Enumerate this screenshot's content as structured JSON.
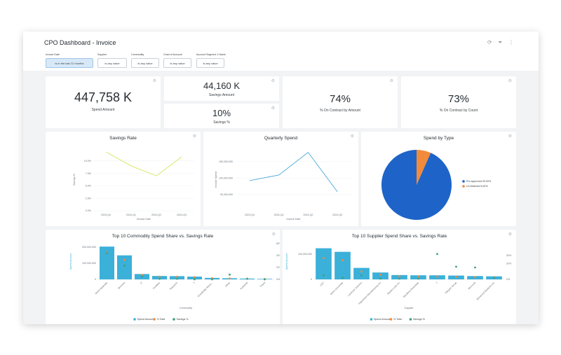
{
  "header": {
    "title": "CPO Dashboard - Invoice",
    "icons": [
      "refresh-icon",
      "filter-icon",
      "more-vertical-icon"
    ]
  },
  "filters": [
    {
      "label": "Invoice Date",
      "value": "is in the last 12 months"
    },
    {
      "label": "Supplier",
      "value": "is any value"
    },
    {
      "label": "Commodity",
      "value": "is any value"
    },
    {
      "label": "Chart of Account",
      "value": "is any value"
    },
    {
      "label": "Account Segment 1 Name",
      "value": "is any value"
    }
  ],
  "kpis": {
    "spend_amount": {
      "value": "447,758 K",
      "label": "Spend Amount"
    },
    "savings_amount": {
      "value": "44,160 K",
      "label": "Savings Amount"
    },
    "savings_pct": {
      "value": "10%",
      "label": "Savings %"
    },
    "on_contract_amount": {
      "value": "74%",
      "label": "% On Contract by Amount"
    },
    "on_contract_count": {
      "value": "73%",
      "label": "% On Contract by Count"
    }
  },
  "colors": {
    "teal": "#3bb0d9",
    "orange": "#f28a3b",
    "green": "#3f9f79",
    "blue_pie": "#1e64c8",
    "lime_line": "#d7e55f",
    "blue_line": "#4aa9dc"
  },
  "chart_data": [
    {
      "id": "savings_rate",
      "type": "line",
      "title": "Savings Rate",
      "xlabel": "Invoice Date",
      "ylabel": "Savings %",
      "x": [
        "2023-Q4",
        "2024-Q1",
        "2024-Q2",
        "2024-Q3"
      ],
      "series": [
        {
          "values": [
            11.8,
            9.0,
            7.0,
            10.8
          ]
        }
      ],
      "y_ticks": [
        "0.0%",
        "2.5%",
        "5.0%",
        "7.5%",
        "10.0%"
      ],
      "ylim": [
        0,
        12.5
      ]
    },
    {
      "id": "quarterly_spend",
      "type": "line",
      "title": "Quarterly Spend",
      "xlabel": "Invoice Date",
      "ylabel": "Invoice Spend",
      "x": [
        "2023-Q4",
        "2024-Q1",
        "2024-Q2",
        "2024-Q3"
      ],
      "series": [
        {
          "values": [
            92000000,
            109000000,
            178000000,
            58000000
          ]
        }
      ],
      "y_ticks": [
        "50,000,000",
        "100,000,000",
        "150,000,000"
      ],
      "ylim": [
        0,
        190000000
      ]
    },
    {
      "id": "spend_by_type",
      "type": "pie",
      "title": "Spend by Type",
      "slices": [
        {
          "name": "Pre-Approved",
          "value": 93.39,
          "legend": "Pre-Approved 93.39%"
        },
        {
          "name": "Un-Matched",
          "value": 6.61,
          "legend": "Un-Matched 6.61%"
        }
      ],
      "legend_position": "right"
    },
    {
      "id": "top10_commodity",
      "type": "bar",
      "title": "Top 10 Commodity Spend Share vs. Savings Rate",
      "xlabel": "Commodity",
      "ylabel": "Spend Amount",
      "categories": [
        "Direct Materials",
        "Services",
        "IT",
        "Facilities",
        "Research",
        "T",
        "Knowledge Mana...",
        "Office",
        "Industrial",
        "Travel"
      ],
      "series": [
        {
          "name": "Spend Amount",
          "values": [
            202000000,
            148000000,
            33000000,
            21000000,
            20000000,
            17000000,
            9000000,
            7000000,
            5000000,
            3000000
          ]
        },
        {
          "name": "% Total",
          "values": [
            45,
            33,
            7.5,
            4.7,
            4.5,
            3.8,
            2,
            1.6,
            1.1,
            0.7
          ]
        },
        {
          "name": "Savings %",
          "values": [
            44,
            23,
            5,
            1,
            1,
            0,
            0,
            8,
            1,
            0
          ]
        }
      ],
      "y_ticks_left": [
        "0",
        "100,000,000",
        "200,000,000"
      ],
      "y_ticks_right": [
        "0%",
        "20%",
        "40%",
        "60%"
      ]
    },
    {
      "id": "top10_supplier",
      "type": "bar",
      "title": "Top 10 Supplier Spend Share vs. Savings Rate",
      "xlabel": "Supplier",
      "ylabel": "Spend Amount",
      "categories": [
        "UGT",
        "Bank Unscrimity",
        "Landover Interiors",
        "Paperback Manufacturing Inc",
        "Market Leas Inc",
        "Workflow Essentials",
        "T",
        "Elegant Group",
        "Microsoft",
        "Advanced Solutions Inc"
      ],
      "series": [
        {
          "name": "Spend Amount",
          "values": [
            122000000,
            108000000,
            45000000,
            27000000,
            17000000,
            16000000,
            16000000,
            15000000,
            13000000,
            12000000
          ]
        },
        {
          "name": "% Total",
          "values": [
            27,
            24,
            10,
            6,
            3.8,
            3.6,
            3.6,
            3.3,
            2.9,
            2.7
          ]
        },
        {
          "name": "Savings %",
          "values": [
            5,
            2,
            5,
            1,
            1,
            1,
            32,
            16,
            15,
            2
          ]
        }
      ],
      "y_ticks_left": [
        "0",
        "100,000,000"
      ],
      "y_ticks_right": [
        "0%",
        "20%",
        "30%"
      ]
    }
  ],
  "legends": {
    "bar_combo": [
      "Spend Amount",
      "% Total",
      "Savings %"
    ]
  }
}
